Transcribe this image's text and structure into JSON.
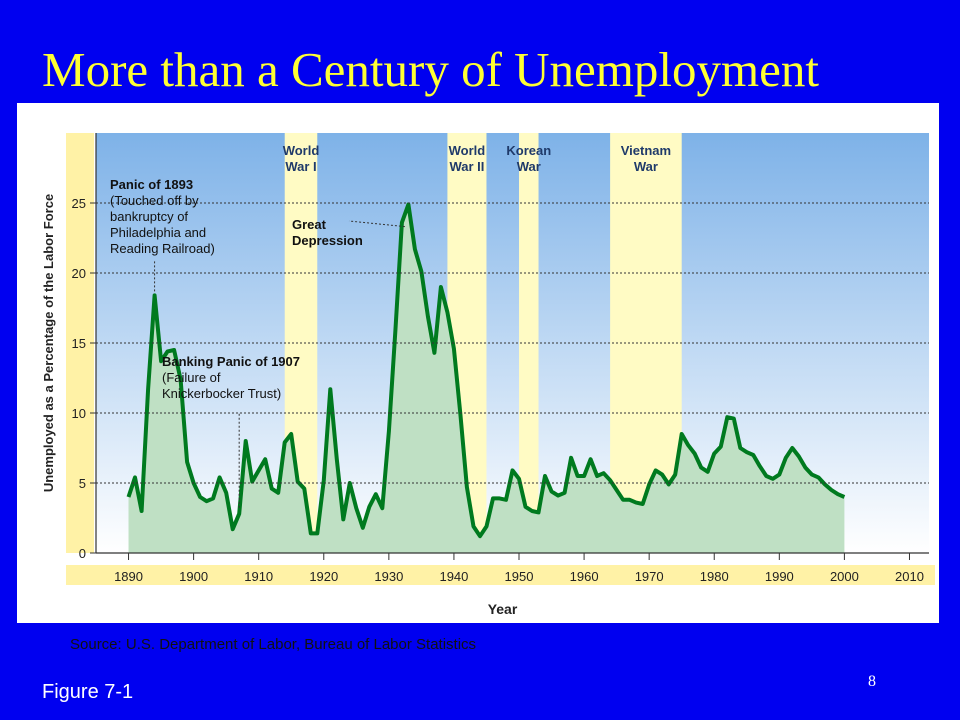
{
  "slide": {
    "title": "More than a Century of Unemployment",
    "source": "Source: U.S. Department of Labor, Bureau of Labor Statistics",
    "figure_label": "Figure 7-1",
    "page_number": "8"
  },
  "colors": {
    "slide_background": "#0000f0",
    "title": "#ffff33",
    "plot_top": "#7eb2e8",
    "plot_bottom": "#ffffff",
    "war_band": "#fffbc4",
    "area_fill": "#bfe0c4",
    "line": "#007a1f",
    "axis_band": "#fff2a6"
  },
  "chart_data": {
    "type": "area",
    "title": "",
    "xlabel": "Year",
    "ylabel": "Unemployed as a Percentage of the Labor Force",
    "xlim": [
      1885,
      2013
    ],
    "ylim": [
      0,
      30
    ],
    "x_ticks": [
      1890,
      1900,
      1910,
      1920,
      1930,
      1940,
      1950,
      1960,
      1970,
      1980,
      1990,
      2000,
      2010
    ],
    "y_ticks": [
      0,
      5,
      10,
      15,
      20,
      25
    ],
    "grid": "horizontal dotted",
    "series": [
      {
        "x": [
          1890,
          1891,
          1892,
          1893,
          1894,
          1895,
          1896,
          1897,
          1898,
          1899,
          1900,
          1901,
          1902,
          1903,
          1904,
          1905,
          1906,
          1907,
          1908,
          1909,
          1910,
          1911,
          1912,
          1913,
          1914,
          1915,
          1916,
          1917,
          1918,
          1919,
          1920,
          1921,
          1922,
          1923,
          1924,
          1925,
          1926,
          1927,
          1928,
          1929,
          1930,
          1931,
          1932,
          1933,
          1934,
          1935,
          1936,
          1937,
          1938,
          1939,
          1940,
          1941,
          1942,
          1943,
          1944,
          1945,
          1946,
          1947,
          1948,
          1949,
          1950,
          1951,
          1952,
          1953,
          1954,
          1955,
          1956,
          1957,
          1958,
          1959,
          1960,
          1961,
          1962,
          1963,
          1964,
          1965,
          1966,
          1967,
          1968,
          1969,
          1970,
          1971,
          1972,
          1973,
          1974,
          1975,
          1976,
          1977,
          1978,
          1979,
          1980,
          1981,
          1982,
          1983,
          1984,
          1985,
          1986,
          1987,
          1988,
          1989,
          1990,
          1991,
          1992,
          1993,
          1994,
          1995,
          1996,
          1997,
          1998,
          1999,
          2000
        ],
        "values": [
          4,
          5.4,
          3,
          11.7,
          18.4,
          13.7,
          14.4,
          14.5,
          12.4,
          6.5,
          5,
          4,
          3.7,
          3.9,
          5.4,
          4.3,
          1.7,
          2.8,
          8,
          5.1,
          5.9,
          6.7,
          4.6,
          4.3,
          7.9,
          8.5,
          5.1,
          4.6,
          1.4,
          1.4,
          5.2,
          11.7,
          6.7,
          2.4,
          5,
          3.2,
          1.8,
          3.3,
          4.2,
          3.2,
          8.7,
          15.9,
          23.6,
          24.9,
          21.7,
          20.1,
          16.9,
          14.3,
          19,
          17.2,
          14.6,
          9.9,
          4.7,
          1.9,
          1.2,
          1.9,
          3.9,
          3.9,
          3.8,
          5.9,
          5.3,
          3.3,
          3,
          2.9,
          5.5,
          4.4,
          4.1,
          4.3,
          6.8,
          5.5,
          5.5,
          6.7,
          5.5,
          5.7,
          5.2,
          4.5,
          3.8,
          3.8,
          3.6,
          3.5,
          4.9,
          5.9,
          5.6,
          4.9,
          5.6,
          8.5,
          7.7,
          7.1,
          6.1,
          5.8,
          7.1,
          7.6,
          9.7,
          9.6,
          7.5,
          7.2,
          7,
          6.2,
          5.5,
          5.3,
          5.6,
          6.8,
          7.5,
          6.9,
          6.1,
          5.6,
          5.4,
          4.9,
          4.5,
          4.2,
          4
        ]
      }
    ],
    "war_periods": [
      {
        "start": 1914,
        "end": 1919,
        "label_lines": [
          "World",
          "War I"
        ]
      },
      {
        "start": 1939,
        "end": 1945,
        "label_lines": [
          "World",
          "War II"
        ]
      },
      {
        "start": 1950,
        "end": 1953,
        "label_lines": [
          "Korean",
          "War"
        ]
      },
      {
        "start": 1964,
        "end": 1975,
        "label_lines": [
          "Vietnam",
          "War"
        ]
      }
    ],
    "annotations": [
      {
        "name": "panic-1893",
        "lines": [
          "Panic of 1893",
          "(Touched off by",
          "bankruptcy of",
          "Philadelphia and",
          "Reading Railroad)"
        ]
      },
      {
        "name": "great-depression",
        "lines": [
          "Great",
          "Depression"
        ]
      },
      {
        "name": "panic-1907",
        "lines": [
          "Banking Panic of 1907",
          "(Failure of",
          "Knickerbocker Trust)"
        ]
      }
    ]
  }
}
